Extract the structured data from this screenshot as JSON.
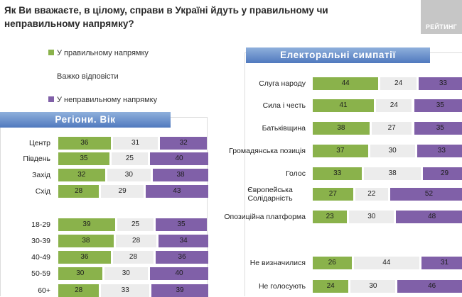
{
  "header": {
    "question": "Як Ви вважаєте, в цілому, справи в Україні йдуть у правильному чи неправильному напрямку?",
    "logo_text": "РЕЙТИНГ"
  },
  "legend": {
    "items": [
      {
        "label": "У правильному напрямку",
        "color": "#8ab24b"
      },
      {
        "label": "Важко відповісти",
        "color": "#ececec"
      },
      {
        "label": "У неправильному напрямку",
        "color": "#8060a8"
      }
    ]
  },
  "colors": {
    "right": "#8ab24b",
    "hard": "#ececec",
    "wrong": "#8060a8",
    "banner": "#5b84c4"
  },
  "chart_data": [
    {
      "type": "bar",
      "stacked": true,
      "orientation": "horizontal",
      "title": "Регіони. Вік",
      "categories": [
        "Центр",
        "Південь",
        "Захід",
        "Схід",
        "18-29",
        "30-39",
        "40-49",
        "50-59",
        "60+"
      ],
      "series": [
        {
          "name": "У правильному напрямку",
          "values": [
            36,
            35,
            32,
            28,
            39,
            38,
            36,
            30,
            28
          ]
        },
        {
          "name": "Важко відповісти",
          "values": [
            31,
            25,
            30,
            29,
            25,
            28,
            28,
            30,
            33
          ]
        },
        {
          "name": "У неправильному напрямку",
          "values": [
            32,
            40,
            38,
            43,
            35,
            34,
            36,
            40,
            39
          ]
        }
      ]
    },
    {
      "type": "bar",
      "stacked": true,
      "orientation": "horizontal",
      "title": "Електоральні симпатії",
      "categories": [
        "Слуга народу",
        "Сила і честь",
        "Батьківщина",
        "Громадянська позиція",
        "Голос",
        "Європейська Солідарність",
        "Опозиційна платформа",
        "Не визначилися",
        "Не голосують"
      ],
      "series": [
        {
          "name": "У правильному напрямку",
          "values": [
            44,
            41,
            38,
            37,
            33,
            27,
            23,
            26,
            24
          ]
        },
        {
          "name": "Важко відповісти",
          "values": [
            24,
            24,
            27,
            30,
            38,
            22,
            30,
            44,
            30
          ]
        },
        {
          "name": "У неправильному напрямку",
          "values": [
            33,
            35,
            35,
            33,
            29,
            52,
            48,
            31,
            46
          ]
        }
      ]
    }
  ]
}
